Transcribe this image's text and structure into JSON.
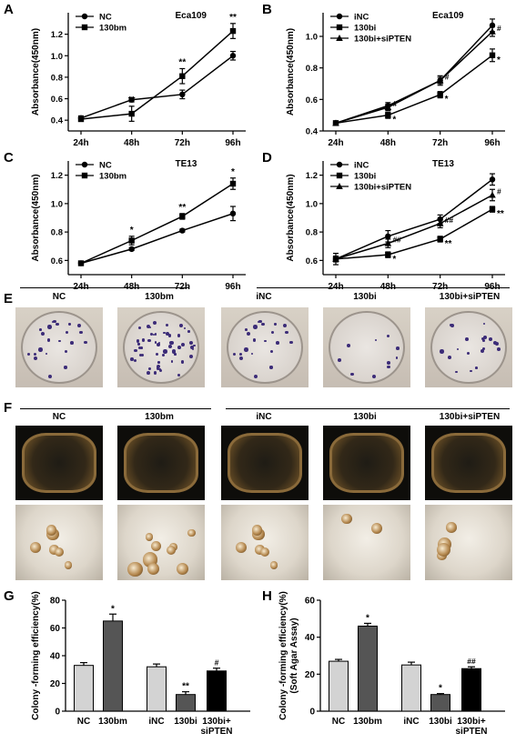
{
  "panels": {
    "A": "A",
    "B": "B",
    "C": "C",
    "D": "D",
    "E": "E",
    "F": "F",
    "G": "G",
    "H": "H"
  },
  "chart_data": [
    {
      "id": "A",
      "type": "line",
      "title": "Eca109",
      "xlabel": "",
      "ylabel": "Absorbance(450nm)",
      "categories": [
        "24h",
        "48h",
        "72h",
        "96h"
      ],
      "ylim": [
        0.3,
        1.4
      ],
      "yticks": [
        0.4,
        0.6,
        0.8,
        1.0,
        1.2
      ],
      "ytick_labels": [
        "0.4",
        "0.6",
        "0.8",
        "1.0",
        "1.2"
      ],
      "legend": "top-left",
      "series": [
        {
          "name": "NC",
          "marker": "circle",
          "values": [
            0.42,
            0.59,
            0.64,
            1.0
          ],
          "errors": [
            0.02,
            0.02,
            0.04,
            0.04
          ],
          "labels": [
            "",
            "",
            "",
            ""
          ]
        },
        {
          "name": "130bm",
          "marker": "square",
          "values": [
            0.41,
            0.46,
            0.81,
            1.23
          ],
          "errors": [
            0.02,
            0.07,
            0.07,
            0.07
          ],
          "labels": [
            "",
            "**",
            "**",
            "**"
          ]
        }
      ]
    },
    {
      "id": "B",
      "type": "line",
      "title": "Eca109",
      "xlabel": "",
      "ylabel": "Absorbance(450nm)",
      "categories": [
        "24h",
        "48h",
        "72h",
        "96h"
      ],
      "ylim": [
        0.4,
        1.15
      ],
      "yticks": [
        0.4,
        0.6,
        0.8,
        1.0
      ],
      "ytick_labels": [
        "0.4",
        "0.6",
        "0.8",
        "1.0"
      ],
      "legend": "top-left",
      "series": [
        {
          "name": "iNC",
          "marker": "circle",
          "values": [
            0.45,
            0.56,
            0.72,
            1.07
          ],
          "errors": [
            0.01,
            0.02,
            0.03,
            0.04
          ],
          "labels": [
            "",
            "",
            "",
            ""
          ]
        },
        {
          "name": "130bi",
          "marker": "square",
          "values": [
            0.45,
            0.5,
            0.63,
            0.88
          ],
          "errors": [
            0.01,
            0.02,
            0.02,
            0.04
          ],
          "labels": [
            "",
            "*",
            "*",
            "*"
          ]
        },
        {
          "name": "130bi+siPTEN",
          "marker": "triangle",
          "values": [
            0.45,
            0.55,
            0.72,
            1.03
          ],
          "errors": [
            0.01,
            0.02,
            0.02,
            0.03
          ],
          "labels": [
            "",
            "#",
            "#",
            "#"
          ]
        }
      ]
    },
    {
      "id": "C",
      "type": "line",
      "title": "TE13",
      "xlabel": "",
      "ylabel": "Absorbance(450nm)",
      "categories": [
        "24h",
        "48h",
        "72h",
        "96h"
      ],
      "ylim": [
        0.5,
        1.3
      ],
      "yticks": [
        0.6,
        0.8,
        1.0,
        1.2
      ],
      "ytick_labels": [
        "0.6",
        "0.8",
        "1.0",
        "1.2"
      ],
      "legend": "top-left",
      "series": [
        {
          "name": "NC",
          "marker": "circle",
          "values": [
            0.58,
            0.68,
            0.81,
            0.93
          ],
          "errors": [
            0.01,
            0.01,
            0.01,
            0.05
          ],
          "labels": [
            "",
            "",
            "",
            ""
          ]
        },
        {
          "name": "130bm",
          "marker": "square",
          "values": [
            0.58,
            0.74,
            0.91,
            1.14
          ],
          "errors": [
            0.01,
            0.03,
            0.02,
            0.04
          ],
          "labels": [
            "",
            "*",
            "**",
            "*"
          ]
        }
      ]
    },
    {
      "id": "D",
      "type": "line",
      "title": "TE13",
      "xlabel": "",
      "ylabel": "Absorbance(450nm)",
      "categories": [
        "24h",
        "48h",
        "72h",
        "96h"
      ],
      "ylim": [
        0.5,
        1.3
      ],
      "yticks": [
        0.6,
        0.8,
        1.0,
        1.2
      ],
      "ytick_labels": [
        "0.6",
        "0.8",
        "1.0",
        "1.2"
      ],
      "legend": "top-left",
      "series": [
        {
          "name": "iNC",
          "marker": "circle",
          "values": [
            0.61,
            0.77,
            0.89,
            1.17
          ],
          "errors": [
            0.04,
            0.04,
            0.03,
            0.04
          ],
          "labels": [
            "",
            "",
            "",
            ""
          ]
        },
        {
          "name": "130bi",
          "marker": "square",
          "values": [
            0.61,
            0.64,
            0.75,
            0.96
          ],
          "errors": [
            0.02,
            0.02,
            0.02,
            0.02
          ],
          "labels": [
            "",
            "*",
            "**",
            "**"
          ]
        },
        {
          "name": "130bi+siPTEN",
          "marker": "triangle",
          "values": [
            0.61,
            0.72,
            0.86,
            1.06
          ],
          "errors": [
            0.02,
            0.03,
            0.03,
            0.04
          ],
          "labels": [
            "",
            "##",
            "##",
            "#"
          ]
        }
      ]
    },
    {
      "id": "G",
      "type": "bar",
      "xlabel": "",
      "ylabel": "Colony -forming efficiency(%)",
      "categories": [
        "NC",
        "130bm",
        "iNC",
        "130bi",
        "130bi+\nsiPTEN"
      ],
      "ylim": [
        0,
        80
      ],
      "yticks": [
        0,
        20,
        40,
        60,
        80
      ],
      "ytick_labels": [
        "0",
        "20",
        "40",
        "60",
        "80"
      ],
      "values": [
        33,
        65,
        32,
        12,
        29
      ],
      "errors": [
        2,
        5,
        2,
        2,
        2
      ],
      "labels": [
        "",
        "*",
        "",
        "**",
        "#"
      ],
      "colors": [
        "#d3d3d3",
        "#555555",
        "#d3d3d3",
        "#555555",
        "#000000"
      ]
    },
    {
      "id": "H",
      "type": "bar",
      "xlabel": "",
      "ylabel": "Colony -forming efficiency(%)\n(Soft Agar Assay)",
      "categories": [
        "NC",
        "130bm",
        "iNC",
        "130bi",
        "130bi+\nsiPTEN"
      ],
      "ylim": [
        0,
        60
      ],
      "yticks": [
        0,
        20,
        40,
        60
      ],
      "ytick_labels": [
        "0",
        "20",
        "40",
        "60"
      ],
      "values": [
        27,
        46,
        25,
        9,
        23
      ],
      "errors": [
        1,
        1.5,
        1.5,
        0.5,
        1
      ],
      "labels": [
        "",
        "*",
        "",
        "*",
        "##"
      ],
      "colors": [
        "#d3d3d3",
        "#555555",
        "#d3d3d3",
        "#555555",
        "#000000"
      ]
    }
  ],
  "panel_e": {
    "headers": [
      "NC",
      "130bm",
      "iNC",
      "130bi",
      "130bi+siPTEN"
    ]
  },
  "panel_f": {
    "headers": [
      "NC",
      "130bm",
      "iNC",
      "130bi",
      "130bi+siPTEN"
    ]
  },
  "colors": {
    "bar_light": "#d3d3d3",
    "bar_dark": "#555555",
    "bar_black": "#000000",
    "dish_stain": "#3c2c78"
  }
}
